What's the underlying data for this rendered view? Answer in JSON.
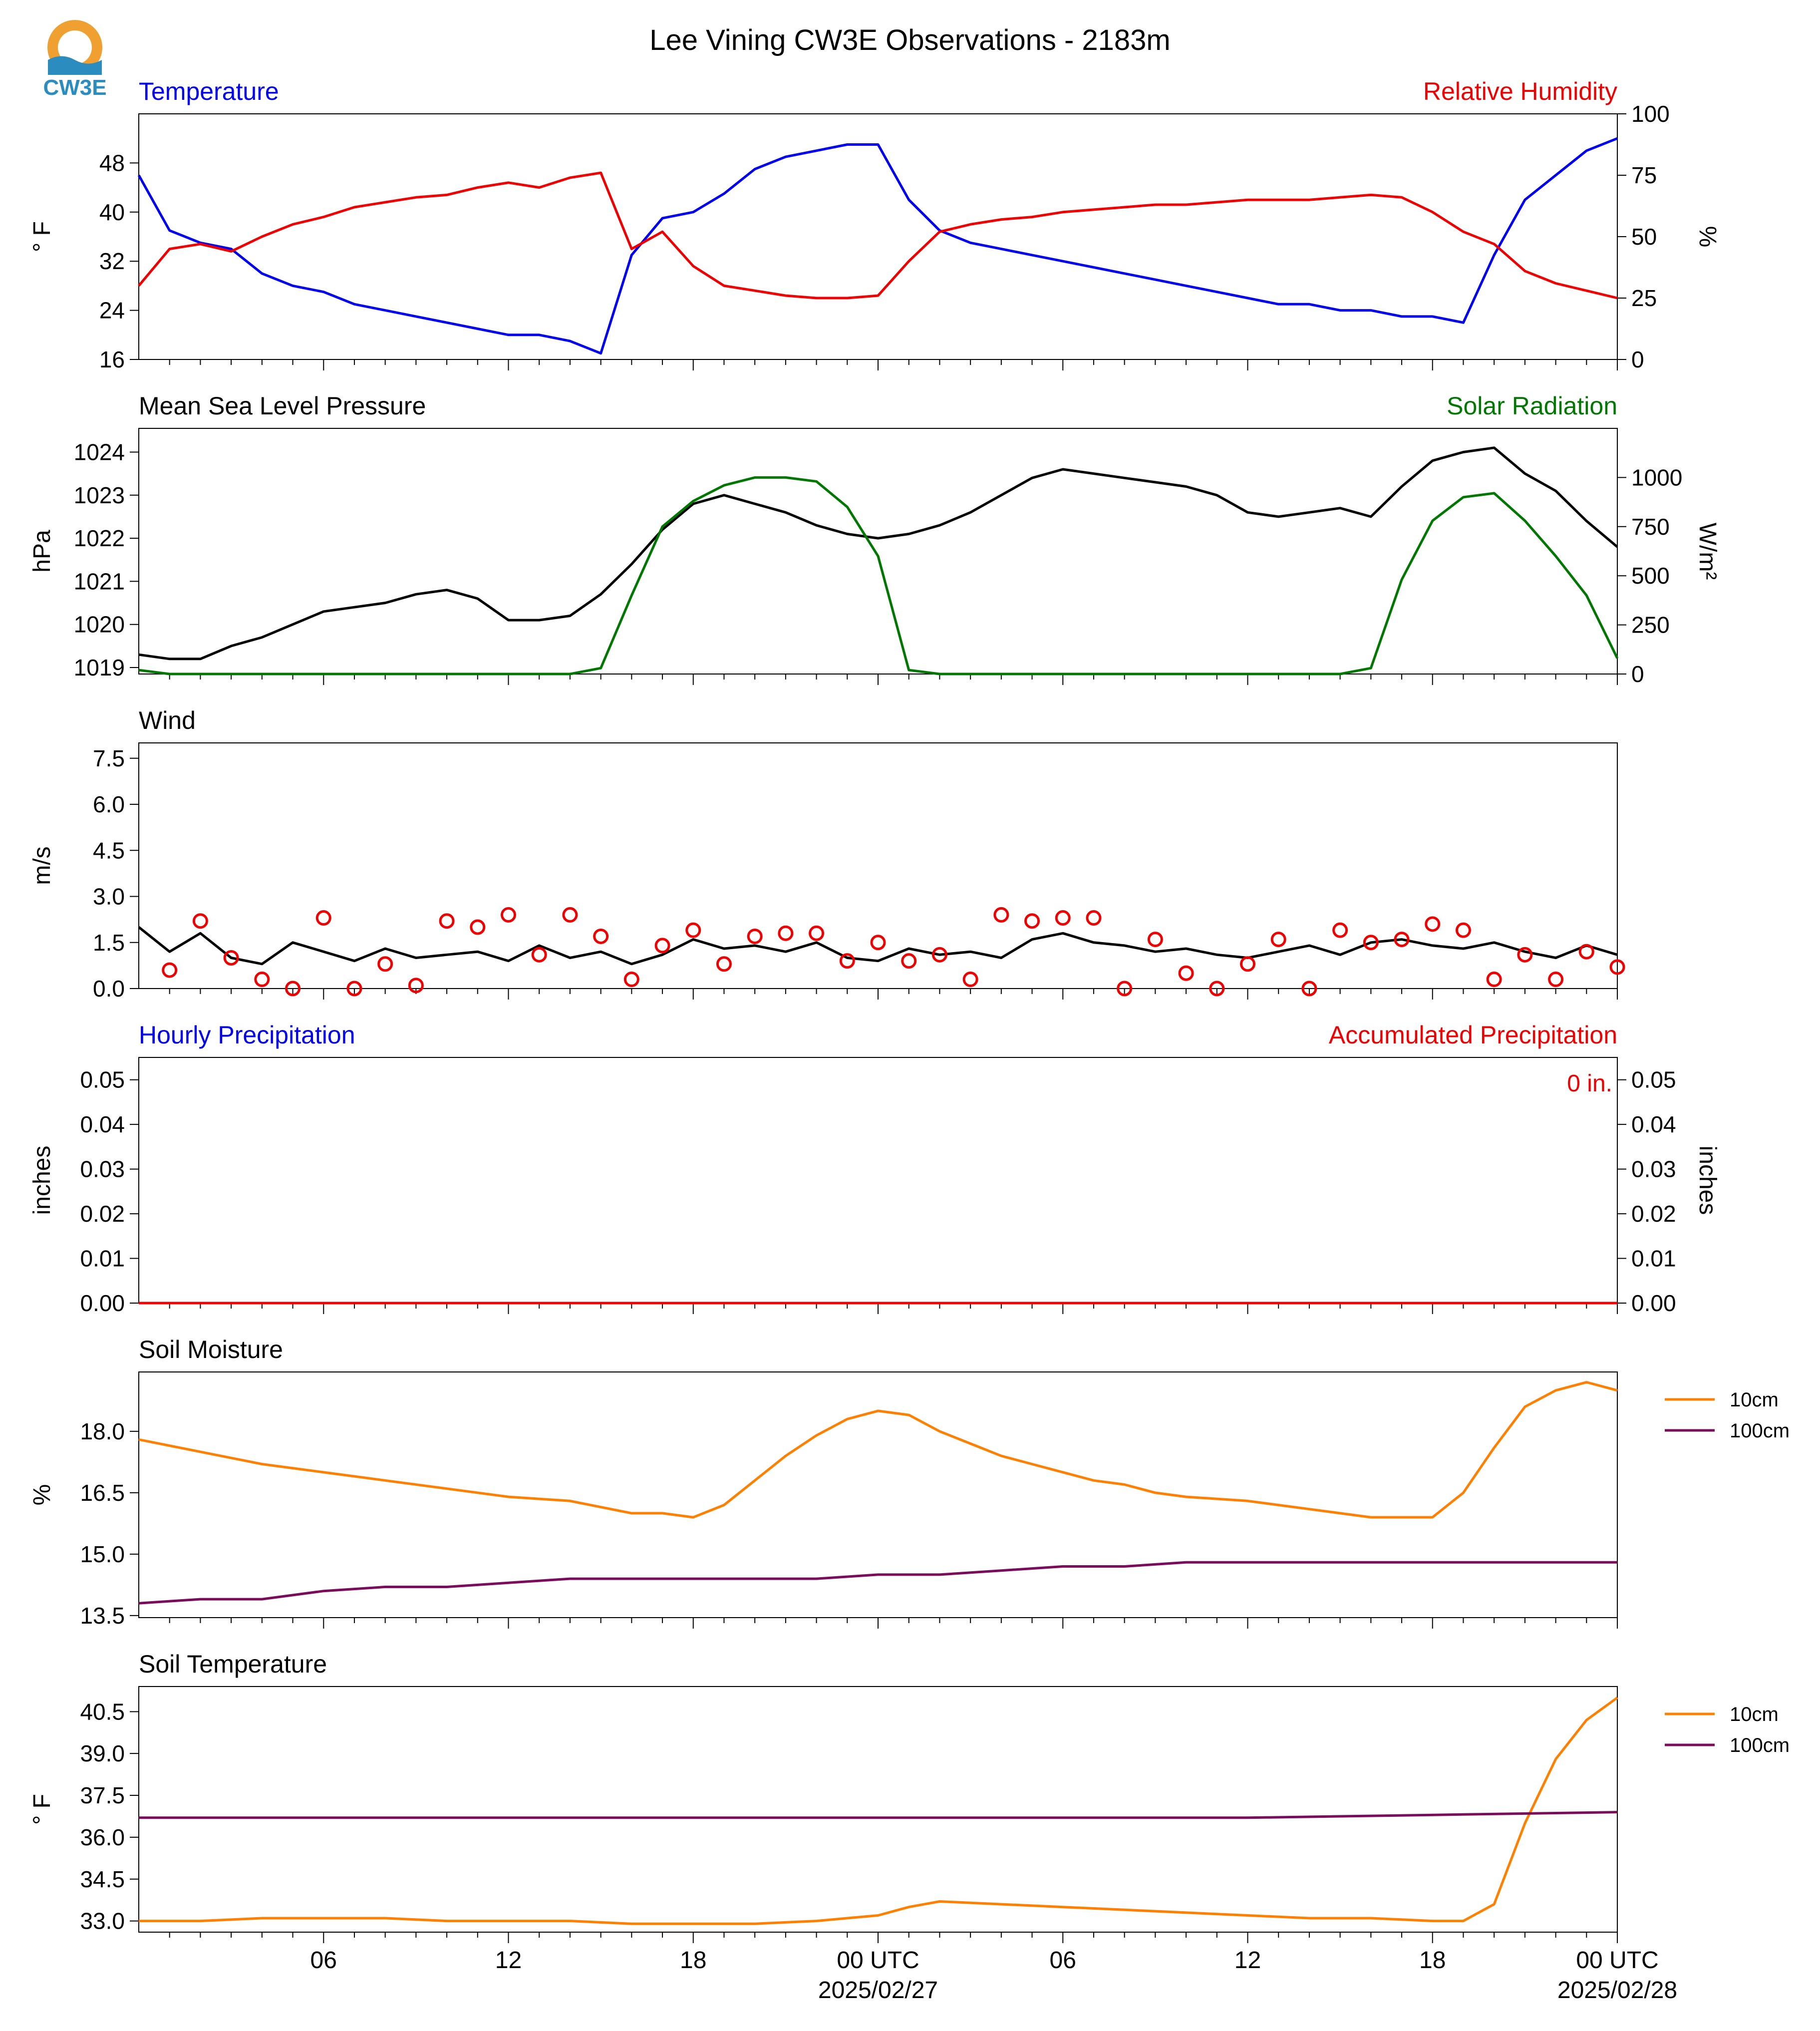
{
  "title": "Lee Vining CW3E Observations - 2183m",
  "logo_text": "CW3E",
  "colors": {
    "temperature": "#0000ee",
    "humidity": "#ee0000",
    "pressure": "#000000",
    "solar": "#007700",
    "wind": "#000000",
    "gust": "#ee0000",
    "precip_hourly": "#0000ee",
    "precip_accum": "#ee0000",
    "soil_10cm": "#ff8000",
    "soil_100cm": "#7a0a5a",
    "logo_orange": "#f0a030",
    "logo_blue": "#2a8cbf"
  },
  "x_axis": {
    "range_hours": [
      0,
      48
    ],
    "ticks_hours": [
      6,
      12,
      18,
      24,
      30,
      36,
      42,
      48
    ],
    "tick_labels": [
      "06",
      "12",
      "18",
      "00 UTC",
      "06",
      "12",
      "18",
      "00 UTC"
    ],
    "date_labels": [
      {
        "hour": 24,
        "label": "2025/02/27"
      },
      {
        "hour": 48,
        "label": "2025/02/28"
      }
    ]
  },
  "chart_data": [
    {
      "type": "line",
      "title_left": "Temperature",
      "title_right": "Relative Humidity",
      "ylabel_left": "° F",
      "ylabel_right": "%",
      "ylim_left": [
        16,
        56
      ],
      "ylim_right": [
        0,
        100
      ],
      "yticks_left": [
        16,
        24,
        32,
        40,
        48
      ],
      "yticks_right": [
        0,
        25,
        50,
        75,
        100
      ],
      "series": [
        {
          "key": "temperature",
          "axis": "left",
          "x": [
            0,
            1,
            2,
            3,
            4,
            5,
            6,
            7,
            8,
            9,
            10,
            11,
            12,
            13,
            14,
            15,
            16,
            17,
            18,
            19,
            20,
            21,
            22,
            23,
            24,
            25,
            26,
            27,
            28,
            29,
            30,
            31,
            32,
            33,
            34,
            35,
            36,
            37,
            38,
            39,
            40,
            41,
            42,
            43,
            44,
            45,
            46,
            47,
            48
          ],
          "values": [
            46,
            37,
            35,
            34,
            30,
            28,
            27,
            25,
            24,
            23,
            22,
            21,
            20,
            20,
            19,
            17,
            33,
            39,
            40,
            43,
            47,
            49,
            50,
            51,
            51,
            42,
            37,
            35,
            34,
            33,
            32,
            31,
            30,
            29,
            28,
            27,
            26,
            25,
            25,
            24,
            24,
            23,
            23,
            22,
            33,
            42,
            46,
            50,
            52
          ]
        },
        {
          "key": "humidity",
          "axis": "right",
          "x": [
            0,
            1,
            2,
            3,
            4,
            5,
            6,
            7,
            8,
            9,
            10,
            11,
            12,
            13,
            14,
            15,
            16,
            17,
            18,
            19,
            20,
            21,
            22,
            23,
            24,
            25,
            26,
            27,
            28,
            29,
            30,
            31,
            32,
            33,
            34,
            35,
            36,
            37,
            38,
            39,
            40,
            41,
            42,
            43,
            44,
            45,
            46,
            47,
            48
          ],
          "values": [
            30,
            45,
            47,
            44,
            50,
            55,
            58,
            62,
            64,
            66,
            67,
            70,
            72,
            70,
            74,
            76,
            45,
            52,
            38,
            30,
            28,
            26,
            25,
            25,
            26,
            40,
            52,
            55,
            57,
            58,
            60,
            61,
            62,
            63,
            63,
            64,
            65,
            65,
            65,
            66,
            67,
            66,
            60,
            52,
            47,
            36,
            31,
            28,
            25
          ]
        }
      ]
    },
    {
      "type": "line",
      "title_left": "Mean Sea Level Pressure",
      "title_right": "Solar Radiation",
      "ylabel_left": "hPa",
      "ylabel_right": "W/m²",
      "ylim_left": [
        1018.85,
        1024.55
      ],
      "ylim_right": [
        0,
        1250
      ],
      "yticks_left": [
        1019,
        1020,
        1021,
        1022,
        1023,
        1024
      ],
      "yticks_right": [
        0,
        250,
        500,
        750,
        1000
      ],
      "series": [
        {
          "key": "pressure",
          "axis": "left",
          "x": [
            0,
            1,
            2,
            3,
            4,
            5,
            6,
            7,
            8,
            9,
            10,
            11,
            12,
            13,
            14,
            15,
            16,
            17,
            18,
            19,
            20,
            21,
            22,
            23,
            24,
            25,
            26,
            27,
            28,
            29,
            30,
            31,
            32,
            33,
            34,
            35,
            36,
            37,
            38,
            39,
            40,
            41,
            42,
            43,
            44,
            45,
            46,
            47,
            48
          ],
          "values": [
            1019.3,
            1019.2,
            1019.2,
            1019.5,
            1019.7,
            1020.0,
            1020.3,
            1020.4,
            1020.5,
            1020.7,
            1020.8,
            1020.6,
            1020.1,
            1020.1,
            1020.2,
            1020.7,
            1021.4,
            1022.2,
            1022.8,
            1023.0,
            1022.8,
            1022.6,
            1022.3,
            1022.1,
            1022.0,
            1022.1,
            1022.3,
            1022.6,
            1023.0,
            1023.4,
            1023.6,
            1023.5,
            1023.4,
            1023.3,
            1023.2,
            1023.0,
            1022.6,
            1022.5,
            1022.6,
            1022.7,
            1022.5,
            1023.2,
            1023.8,
            1024.0,
            1024.1,
            1023.5,
            1023.1,
            1022.4,
            1021.8
          ]
        },
        {
          "key": "solar",
          "axis": "right",
          "x": [
            0,
            1,
            2,
            3,
            4,
            5,
            6,
            7,
            8,
            9,
            10,
            11,
            12,
            13,
            14,
            15,
            16,
            17,
            18,
            19,
            20,
            21,
            22,
            23,
            24,
            25,
            26,
            27,
            28,
            29,
            30,
            31,
            32,
            33,
            34,
            35,
            36,
            37,
            38,
            39,
            40,
            41,
            42,
            43,
            44,
            45,
            46,
            47,
            48
          ],
          "values": [
            20,
            0,
            0,
            0,
            0,
            0,
            0,
            0,
            0,
            0,
            0,
            0,
            0,
            0,
            0,
            30,
            400,
            750,
            880,
            960,
            1000,
            1000,
            980,
            850,
            600,
            20,
            0,
            0,
            0,
            0,
            0,
            0,
            0,
            0,
            0,
            0,
            0,
            0,
            0,
            0,
            30,
            480,
            780,
            900,
            920,
            780,
            600,
            400,
            80
          ]
        }
      ]
    },
    {
      "type": "line",
      "title_left": "Wind",
      "ylabel_left": "m/s",
      "ylim_left": [
        0,
        8.0
      ],
      "yticks_left": [
        0.0,
        1.5,
        3.0,
        4.5,
        6.0,
        7.5
      ],
      "series": [
        {
          "key": "wind",
          "axis": "left",
          "x": [
            0,
            1,
            2,
            3,
            4,
            5,
            6,
            7,
            8,
            9,
            10,
            11,
            12,
            13,
            14,
            15,
            16,
            17,
            18,
            19,
            20,
            21,
            22,
            23,
            24,
            25,
            26,
            27,
            28,
            29,
            30,
            31,
            32,
            33,
            34,
            35,
            36,
            37,
            38,
            39,
            40,
            41,
            42,
            43,
            44,
            45,
            46,
            47,
            48
          ],
          "values": [
            2.0,
            1.2,
            1.8,
            1.0,
            0.8,
            1.5,
            1.2,
            0.9,
            1.3,
            1.0,
            1.1,
            1.2,
            0.9,
            1.4,
            1.0,
            1.2,
            0.8,
            1.1,
            1.6,
            1.3,
            1.4,
            1.2,
            1.5,
            1.0,
            0.9,
            1.3,
            1.1,
            1.2,
            1.0,
            1.6,
            1.8,
            1.5,
            1.4,
            1.2,
            1.3,
            1.1,
            1.0,
            1.2,
            1.4,
            1.1,
            1.5,
            1.6,
            1.4,
            1.3,
            1.5,
            1.2,
            1.0,
            1.4,
            1.1
          ]
        },
        {
          "key": "gust",
          "axis": "left",
          "mode": "markers",
          "x": [
            1,
            2,
            3,
            4,
            5,
            6,
            7,
            8,
            9,
            10,
            11,
            12,
            13,
            14,
            15,
            16,
            17,
            18,
            19,
            20,
            21,
            22,
            23,
            24,
            25,
            26,
            27,
            28,
            29,
            30,
            31,
            32,
            33,
            34,
            35,
            36,
            37,
            38,
            39,
            40,
            41,
            42,
            43,
            44,
            45,
            46,
            47,
            48
          ],
          "values": [
            0.6,
            2.2,
            1.0,
            0.3,
            0.0,
            2.3,
            0.0,
            0.8,
            0.1,
            2.2,
            2.0,
            2.4,
            1.1,
            2.4,
            1.7,
            0.3,
            1.4,
            1.9,
            0.8,
            1.7,
            1.8,
            1.8,
            0.9,
            1.5,
            0.9,
            1.1,
            0.3,
            2.4,
            2.2,
            2.3,
            2.3,
            0.0,
            1.6,
            0.5,
            0.0,
            0.8,
            1.6,
            0.0,
            1.9,
            1.5,
            1.6,
            2.1,
            1.9,
            0.3,
            1.1,
            0.3,
            1.2,
            0.7
          ]
        }
      ]
    },
    {
      "type": "line",
      "title_left": "Hourly Precipitation",
      "title_right": "Accumulated Precipitation",
      "ylabel_left": "inches",
      "ylabel_right": "inches",
      "ylim_left": [
        0,
        0.055
      ],
      "ylim_right": [
        0,
        0.055
      ],
      "yticks_left": [
        0.0,
        0.01,
        0.02,
        0.03,
        0.04,
        0.05
      ],
      "yticks_right": [
        0.0,
        0.01,
        0.02,
        0.03,
        0.04,
        0.05
      ],
      "annotation": "0 in.",
      "series": [
        {
          "key": "precip_accum",
          "axis": "left",
          "x": [
            0,
            48
          ],
          "values": [
            0,
            0
          ]
        }
      ]
    },
    {
      "type": "line",
      "title_left": "Soil Moisture",
      "ylabel_left": "%",
      "ylim_left": [
        13.45,
        19.45
      ],
      "yticks_left": [
        13.5,
        15.0,
        16.5,
        18.0
      ],
      "legend": "right",
      "series": [
        {
          "key": "soil_10cm",
          "name": "10cm",
          "axis": "left",
          "x": [
            0,
            2,
            4,
            6,
            8,
            10,
            12,
            14,
            16,
            17,
            18,
            19,
            20,
            21,
            22,
            23,
            24,
            25,
            26,
            27,
            28,
            29,
            30,
            31,
            32,
            33,
            34,
            36,
            38,
            40,
            41,
            42,
            43,
            44,
            45,
            46,
            47,
            48
          ],
          "values": [
            17.8,
            17.5,
            17.2,
            17.0,
            16.8,
            16.6,
            16.4,
            16.3,
            16.0,
            16.0,
            15.9,
            16.2,
            16.8,
            17.4,
            17.9,
            18.3,
            18.5,
            18.4,
            18.0,
            17.7,
            17.4,
            17.2,
            17.0,
            16.8,
            16.7,
            16.5,
            16.4,
            16.3,
            16.1,
            15.9,
            15.9,
            15.9,
            16.5,
            17.6,
            18.6,
            19.0,
            19.2,
            19.0
          ]
        },
        {
          "key": "soil_100cm",
          "name": "100cm",
          "axis": "left",
          "x": [
            0,
            2,
            4,
            6,
            8,
            10,
            12,
            14,
            16,
            18,
            20,
            22,
            24,
            26,
            28,
            30,
            32,
            34,
            36,
            38,
            40,
            42,
            44,
            46,
            48
          ],
          "values": [
            13.8,
            13.9,
            13.9,
            14.1,
            14.2,
            14.2,
            14.3,
            14.4,
            14.4,
            14.4,
            14.4,
            14.4,
            14.5,
            14.5,
            14.6,
            14.7,
            14.7,
            14.8,
            14.8,
            14.8,
            14.8,
            14.8,
            14.8,
            14.8,
            14.8
          ]
        }
      ]
    },
    {
      "type": "line",
      "title_left": "Soil Temperature",
      "ylabel_left": "° F",
      "ylim_left": [
        32.6,
        41.4
      ],
      "yticks_left": [
        33.0,
        34.5,
        36.0,
        37.5,
        39.0,
        40.5
      ],
      "legend": "right",
      "series": [
        {
          "key": "soil_10cm",
          "name": "10cm",
          "axis": "left",
          "x": [
            0,
            2,
            4,
            6,
            8,
            10,
            12,
            14,
            16,
            18,
            20,
            22,
            23,
            24,
            25,
            26,
            28,
            30,
            32,
            34,
            36,
            38,
            40,
            42,
            43,
            44,
            45,
            46,
            47,
            48
          ],
          "values": [
            33.0,
            33.0,
            33.1,
            33.1,
            33.1,
            33.0,
            33.0,
            33.0,
            32.9,
            32.9,
            32.9,
            33.0,
            33.1,
            33.2,
            33.5,
            33.7,
            33.6,
            33.5,
            33.4,
            33.3,
            33.2,
            33.1,
            33.1,
            33.0,
            33.0,
            33.6,
            36.5,
            38.8,
            40.2,
            41.0
          ]
        },
        {
          "key": "soil_100cm",
          "name": "100cm",
          "axis": "left",
          "x": [
            0,
            36,
            42,
            48
          ],
          "values": [
            36.7,
            36.7,
            36.8,
            36.9
          ]
        }
      ]
    }
  ]
}
